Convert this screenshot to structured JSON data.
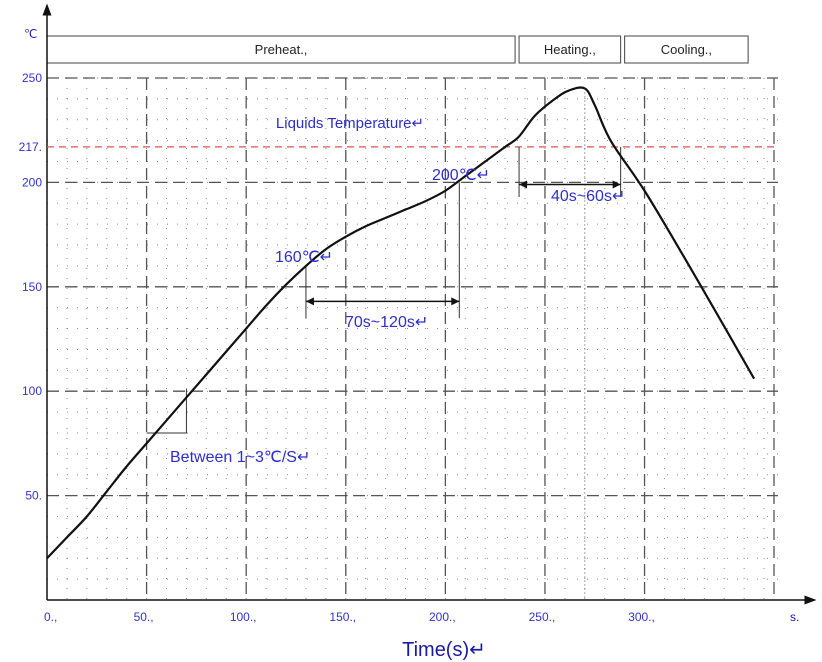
{
  "chart_data": {
    "type": "line",
    "title": "",
    "xlabel": "Time(s)↵",
    "ylabel": "",
    "y_unit": "℃",
    "x_unit": "s.",
    "xlim": [
      0,
      367
    ],
    "ylim": [
      0,
      250
    ],
    "x_ticks": [
      {
        "value": 0,
        "label": "0.,"
      },
      {
        "value": 50,
        "label": "50.,"
      },
      {
        "value": 100,
        "label": "100.,"
      },
      {
        "value": 150,
        "label": "150.,"
      },
      {
        "value": 200,
        "label": "200.,"
      },
      {
        "value": 250,
        "label": "250.,"
      },
      {
        "value": 300,
        "label": "300.,"
      }
    ],
    "y_ticks": [
      {
        "value": 250,
        "label": "250"
      },
      {
        "value": 217,
        "label": "217."
      },
      {
        "value": 200,
        "label": "200"
      },
      {
        "value": 150,
        "label": "150"
      },
      {
        "value": 100,
        "label": "100"
      },
      {
        "value": 50,
        "label": "50."
      }
    ],
    "grid": true,
    "phases": [
      {
        "label": "Preheat.,",
        "start": 0,
        "end": 235
      },
      {
        "label": "Heating.,",
        "start": 237,
        "end": 288
      },
      {
        "label": "Cooling.,",
        "start": 290,
        "end": 352
      }
    ],
    "reference_line": {
      "y": 217,
      "label": "Liquids Temperature↵",
      "color": "#d9534f"
    },
    "series": [
      {
        "x": [
          0,
          10,
          20,
          30,
          40,
          50,
          60,
          70,
          80,
          90,
          100,
          110,
          120,
          130,
          140,
          150,
          160,
          170,
          180,
          190,
          200,
          210,
          220,
          230,
          237,
          245,
          255,
          262,
          270,
          275,
          283,
          300,
          320,
          340,
          355
        ],
        "y": [
          20,
          30,
          40,
          52,
          64,
          75,
          86,
          97,
          108,
          119,
          130,
          141,
          151,
          160,
          168,
          174,
          179,
          183,
          187,
          191,
          196,
          203,
          210,
          217,
          222,
          232,
          240,
          244,
          245,
          237,
          220,
          196,
          164,
          131,
          106
        ],
        "color": "#111111"
      }
    ],
    "annotations": [
      {
        "text": "160℃↵",
        "x": 130,
        "y": 160
      },
      {
        "text": "200℃↵",
        "x": 207,
        "y": 200
      },
      {
        "text": "70s~120s↵"
      },
      {
        "text": "40s~60s↵"
      },
      {
        "text": "Between 1~3℃/S↵"
      }
    ],
    "intervals": [
      {
        "start": 130,
        "end": 207,
        "y": 143
      },
      {
        "start": 237,
        "end": 288,
        "y": 199
      }
    ],
    "slope_triangle": {
      "x1": 50,
      "y1": 80,
      "x2": 70,
      "y2": 101
    }
  }
}
